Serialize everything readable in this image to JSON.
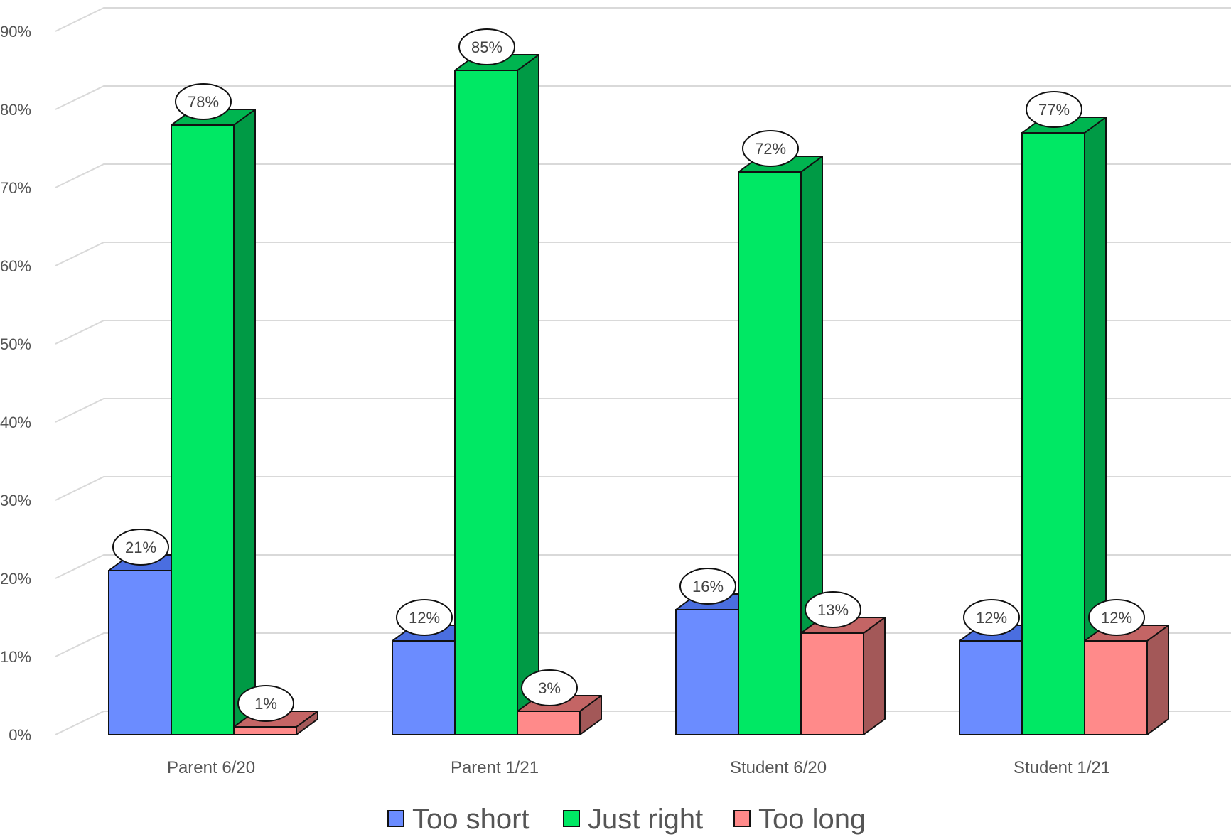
{
  "chart_data": {
    "type": "bar",
    "title": "",
    "xlabel": "",
    "ylabel": "",
    "categories": [
      "Parent 6/20",
      "Parent 1/21",
      "Student 6/20",
      "Student 1/21"
    ],
    "series": [
      {
        "name": "Too short",
        "values": [
          21,
          12,
          16,
          12
        ],
        "labels": [
          "21%",
          "12%",
          "16%",
          "12%"
        ],
        "color": "#6b8cff",
        "side_color": "#3f5fcc",
        "top_color": "#4a6ee0"
      },
      {
        "name": "Just right",
        "values": [
          78,
          85,
          72,
          77
        ],
        "labels": [
          "78%",
          "85%",
          "72%",
          "77%"
        ],
        "color": "#00e864",
        "side_color": "#009a45",
        "top_color": "#00b550"
      },
      {
        "name": "Too long",
        "values": [
          1,
          3,
          13,
          12
        ],
        "labels": [
          "1%",
          "3%",
          "13%",
          "12%"
        ],
        "color": "#ff8a8a",
        "side_color": "#a35858",
        "top_color": "#c46565"
      }
    ],
    "ylim": [
      0,
      90
    ],
    "y_ticks": [
      0,
      10,
      20,
      30,
      40,
      50,
      60,
      70,
      80,
      90
    ],
    "y_tick_labels": [
      "0%",
      "10%",
      "20%",
      "30%",
      "40%",
      "50%",
      "60%",
      "70%",
      "80%",
      "90%"
    ],
    "grid": true,
    "legend_position": "bottom",
    "style": "3d-clustered-column"
  }
}
